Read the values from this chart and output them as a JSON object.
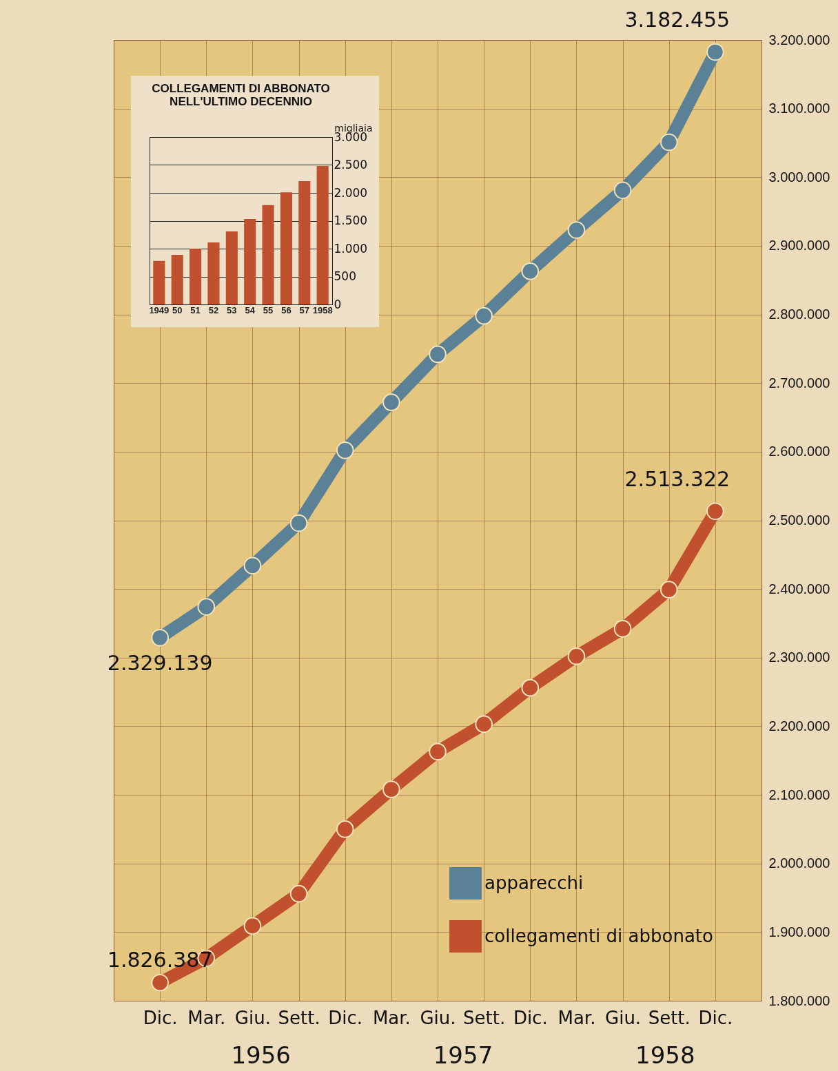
{
  "chart_data": [
    {
      "type": "line",
      "categories": [
        "Dic.",
        "Mar.",
        "Giu.",
        "Sett.",
        "Dic.",
        "Mar.",
        "Giu.",
        "Sett.",
        "Dic.",
        "Mar.",
        "Giu.",
        "Sett.",
        "Dic."
      ],
      "ylim": [
        1800000,
        3200000
      ],
      "yticks": [
        {
          "value": 1800000,
          "label": "1.800.000"
        },
        {
          "value": 1900000,
          "label": "1.900.000"
        },
        {
          "value": 2000000,
          "label": "2.000.000"
        },
        {
          "value": 2100000,
          "label": "2.100.000"
        },
        {
          "value": 2200000,
          "label": "2.200.000"
        },
        {
          "value": 2300000,
          "label": "2.300.000"
        },
        {
          "value": 2400000,
          "label": "2.400.000"
        },
        {
          "value": 2500000,
          "label": "2.500.000"
        },
        {
          "value": 2600000,
          "label": "2.600.000"
        },
        {
          "value": 2700000,
          "label": "2.700.000"
        },
        {
          "value": 2800000,
          "label": "2.800.000"
        },
        {
          "value": 2900000,
          "label": "2.900.000"
        },
        {
          "value": 3000000,
          "label": "3.000.000"
        },
        {
          "value": 3100000,
          "label": "3.100.000"
        },
        {
          "value": 3200000,
          "label": "3.200.000"
        }
      ],
      "grid": true,
      "legend": "bottom right",
      "marker": "circle",
      "series": [
        {
          "name": "apparecchi",
          "color": "#5b8196",
          "values": [
            2329139,
            2374000,
            2434000,
            2496000,
            2602000,
            2672000,
            2742000,
            2798000,
            2863000,
            2923000,
            2981000,
            3051000,
            3182455
          ],
          "value_labels": [
            "2.329.139",
            null,
            null,
            null,
            null,
            null,
            null,
            null,
            null,
            null,
            null,
            null,
            "3.182.455"
          ]
        },
        {
          "name": "collegamenti di abbonato",
          "color": "#c0502e",
          "values": [
            1826387,
            1862000,
            1909000,
            1956000,
            2050000,
            2108000,
            2163000,
            2203000,
            2256000,
            2302000,
            2342000,
            2399000,
            2513322
          ],
          "value_labels": [
            "1.826.387",
            null,
            null,
            null,
            null,
            null,
            null,
            null,
            null,
            null,
            null,
            null,
            "2.513.322"
          ]
        }
      ],
      "annotations": [
        "1956",
        "1957",
        "1958"
      ]
    },
    {
      "type": "bar",
      "title": "COLLEGAMENTI DI ABBONATO\nNELL'ULTIMO DECENNIO",
      "ylabel": "migliaia",
      "categories": [
        "1949",
        "50",
        "51",
        "52",
        "53",
        "54",
        "55",
        "56",
        "57",
        "1958"
      ],
      "values": [
        780,
        890,
        1000,
        1110,
        1310,
        1530,
        1780,
        2010,
        2210,
        2480
      ],
      "color": "#c0502e",
      "ylim": [
        0,
        3000
      ],
      "yticks": [
        0,
        500,
        {
          "value": 1000,
          "label": "1.000"
        },
        {
          "value": 1500,
          "label": "1.500"
        },
        {
          "value": 2000,
          "label": "2.000"
        },
        {
          "value": 2500,
          "label": "2.500"
        },
        {
          "value": 3000,
          "label": "3.000"
        }
      ],
      "grid": "y"
    }
  ]
}
